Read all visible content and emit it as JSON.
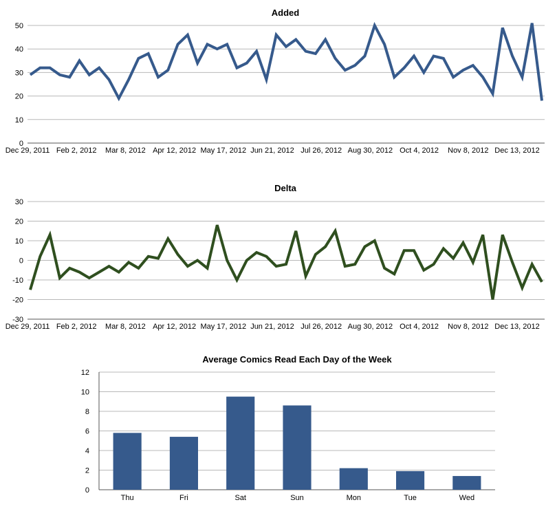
{
  "chart_data": [
    {
      "type": "line",
      "title": "Added",
      "xlabel": "",
      "ylabel": "",
      "ylim": [
        0,
        50
      ],
      "yticks": [
        "0",
        "10",
        "20",
        "30",
        "40",
        "50"
      ],
      "x_tick_labels": [
        "Dec 29, 2011",
        "Feb 2, 2012",
        "Mar 8, 2012",
        "Apr 12, 2012",
        "May 17, 2012",
        "Jun 21, 2012",
        "Jul 26, 2012",
        "Aug 30, 2012",
        "Oct 4, 2012",
        "Nov 8, 2012",
        "Dec 13, 2012"
      ],
      "color": "#365a8c",
      "series": [
        {
          "name": "Added",
          "values": [
            29,
            32,
            32,
            29,
            28,
            35,
            29,
            32,
            27,
            19,
            27,
            36,
            38,
            28,
            31,
            42,
            46,
            34,
            42,
            40,
            42,
            32,
            34,
            39,
            27,
            46,
            41,
            44,
            39,
            38,
            44,
            36,
            31,
            33,
            37,
            50,
            42,
            28,
            32,
            37,
            30,
            37,
            36,
            28,
            31,
            33,
            28,
            21,
            49,
            37,
            28,
            51,
            18
          ]
        }
      ]
    },
    {
      "type": "line",
      "title": "Delta",
      "xlabel": "",
      "ylabel": "",
      "ylim": [
        -30,
        30
      ],
      "yticks": [
        "-30",
        "-20",
        "-10",
        "0",
        "10",
        "20",
        "30"
      ],
      "x_tick_labels": [
        "Dec 29, 2011",
        "Feb 2, 2012",
        "Mar 8, 2012",
        "Apr 12, 2012",
        "May 17, 2012",
        "Jun 21, 2012",
        "Jul 26, 2012",
        "Aug 30, 2012",
        "Oct 4, 2012",
        "Nov 8, 2012",
        "Dec 13, 2012"
      ],
      "color": "#2f4f1f",
      "series": [
        {
          "name": "Delta",
          "values": [
            -15,
            2,
            13,
            -9,
            -4,
            -6,
            -9,
            -6,
            -3,
            -6,
            -1,
            -4,
            2,
            1,
            11,
            3,
            -3,
            0,
            -4,
            18,
            0,
            -10,
            0,
            4,
            2,
            -3,
            -2,
            15,
            -8,
            3,
            7,
            15,
            -3,
            -2,
            7,
            10,
            -4,
            -7,
            5,
            5,
            -5,
            -2,
            6,
            1,
            9,
            -1,
            13,
            -20,
            13,
            -1,
            -14,
            -2,
            -11
          ]
        }
      ]
    },
    {
      "type": "bar",
      "title": "Average Comics Read Each Day of the Week",
      "xlabel": "",
      "ylabel": "",
      "ylim": [
        0,
        12
      ],
      "yticks": [
        "0",
        "2",
        "4",
        "6",
        "8",
        "10",
        "12"
      ],
      "categories": [
        "Thu",
        "Fri",
        "Sat",
        "Sun",
        "Mon",
        "Tue",
        "Wed"
      ],
      "values": [
        5.8,
        5.4,
        9.5,
        8.6,
        2.2,
        1.9,
        1.4
      ],
      "color": "#365a8c"
    }
  ]
}
